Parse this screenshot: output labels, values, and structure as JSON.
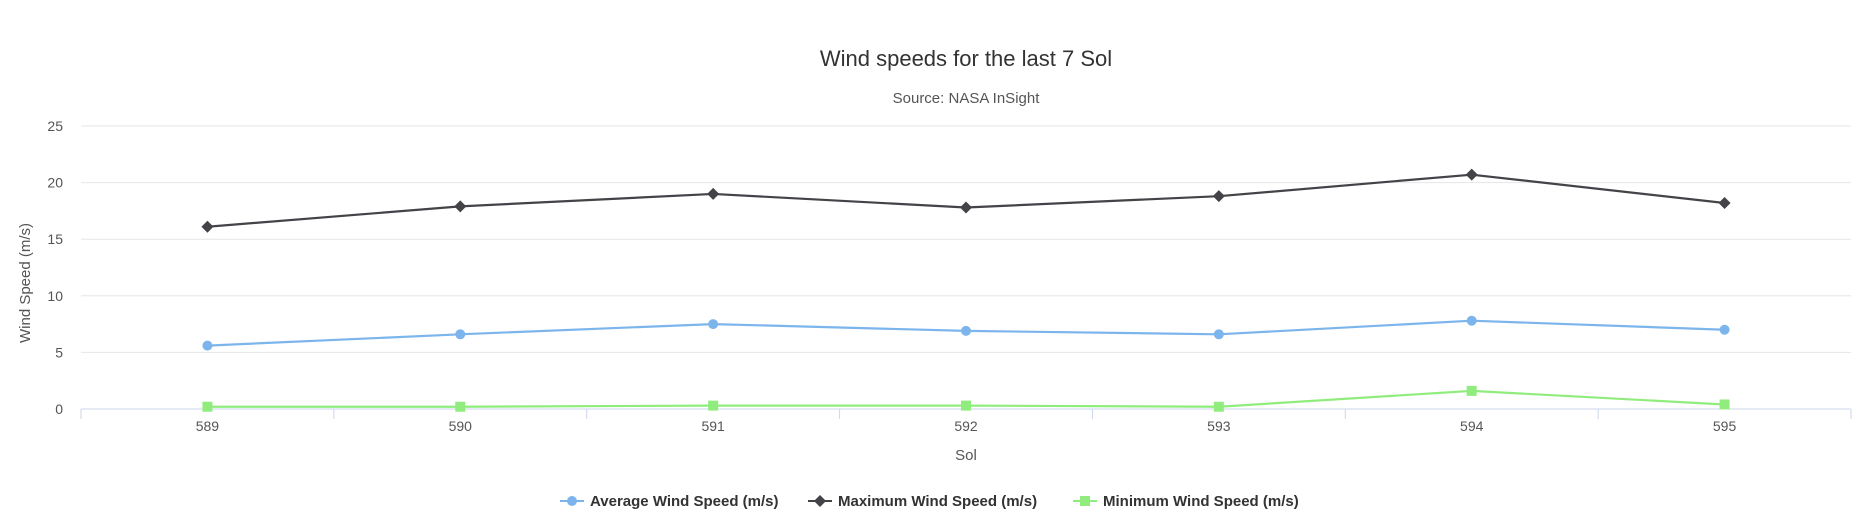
{
  "chart_data": {
    "type": "line",
    "title": "Wind speeds for the last 7 Sol",
    "subtitle": "Source: NASA InSight",
    "xlabel": "Sol",
    "ylabel": "Wind Speed (m/s)",
    "categories": [
      "589",
      "590",
      "591",
      "592",
      "593",
      "594",
      "595"
    ],
    "ylim": [
      0,
      25
    ],
    "yticks": [
      0,
      5,
      10,
      15,
      20,
      25
    ],
    "grid": true,
    "legend_position": "bottom-center",
    "series": [
      {
        "name": "Average Wind Speed (m/s)",
        "color": "#7cb5ec",
        "marker": "circle",
        "values": [
          5.6,
          6.6,
          7.5,
          6.9,
          6.6,
          7.8,
          7.0
        ]
      },
      {
        "name": "Maximum Wind Speed (m/s)",
        "color": "#434348",
        "marker": "diamond",
        "values": [
          16.1,
          17.9,
          19.0,
          17.8,
          18.8,
          20.7,
          18.2
        ]
      },
      {
        "name": "Minimum Wind Speed (m/s)",
        "color": "#90ed7d",
        "marker": "square",
        "values": [
          0.2,
          0.2,
          0.3,
          0.3,
          0.2,
          1.6,
          0.4
        ]
      }
    ]
  }
}
